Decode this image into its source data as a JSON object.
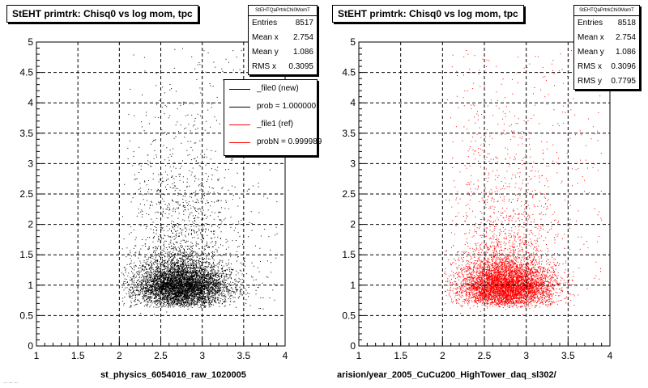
{
  "chart_data": [
    {
      "type": "scatter",
      "title": "StEHT primtrk: Chisq0 vs log mom, tpc",
      "xlim": [
        1,
        4
      ],
      "ylim": [
        0,
        5
      ],
      "x_ticks": [
        "1",
        "1.5",
        "2",
        "2.5",
        "3",
        "3.5",
        "4"
      ],
      "y_ticks": [
        "0",
        "0.5",
        "1",
        "1.5",
        "2",
        "2.5",
        "3",
        "3.5",
        "4",
        "4.5",
        "5"
      ],
      "grid": true,
      "color": "#000000",
      "stats": {
        "name": "StEHTQaPrtrkChi0MomT",
        "rows": [
          {
            "label": "Entries",
            "value": "8517"
          },
          {
            "label": "Mean x",
            "value": "2.754"
          },
          {
            "label": "Mean y",
            "value": "1.086"
          },
          {
            "label": "RMS x",
            "value": "0.3095"
          }
        ]
      },
      "legend": [
        {
          "label": "_file0 (new)",
          "color": "#000000"
        },
        {
          "label": "prob = 1.000000",
          "color": "#000000"
        },
        {
          "label": "_file1 (ref)",
          "color": "#ff0000"
        },
        {
          "label": "probN = 0.999989",
          "color": "#ff0000"
        }
      ],
      "bottom_text": "st_physics_6054016_raw_1020005",
      "distribution": {
        "center_x": 2.754,
        "center_y": 0.85,
        "entries": 8517
      }
    },
    {
      "type": "scatter",
      "title": "StEHT primtrk: Chisq0 vs log mom, tpc",
      "xlim": [
        1,
        4
      ],
      "ylim": [
        0,
        5
      ],
      "x_ticks": [
        "1",
        "1.5",
        "2",
        "2.5",
        "3",
        "3.5",
        "4"
      ],
      "y_ticks": [
        "0",
        "0.5",
        "1",
        "1.5",
        "2",
        "2.5",
        "3",
        "3.5",
        "4",
        "4.5",
        "5"
      ],
      "grid": true,
      "color": "#ff0000",
      "stats": {
        "name": "StEHTQaPrtrkChi0MomT",
        "rows": [
          {
            "label": "Entries",
            "value": "8518"
          },
          {
            "label": "Mean x",
            "value": "2.754"
          },
          {
            "label": "Mean y",
            "value": "1.086"
          },
          {
            "label": "RMS x",
            "value": "0.3096"
          },
          {
            "label": "RMS y",
            "value": "0.7795"
          }
        ]
      },
      "bottom_text": "arision/year_2005_CuCu200_HighTower_daq_sl302/",
      "distribution": {
        "center_x": 2.754,
        "center_y": 0.85,
        "entries": 8518
      }
    }
  ],
  "footer_small": "... ... ..."
}
